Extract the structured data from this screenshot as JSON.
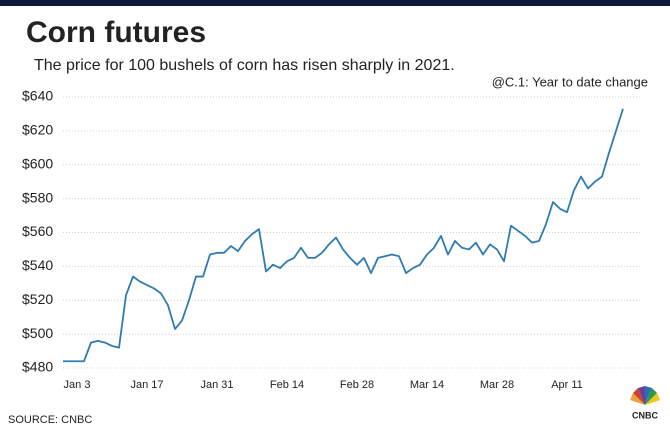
{
  "chart_data": {
    "type": "line",
    "title": "Corn futures",
    "subtitle": "The price for 100 bushels of corn has risen sharply in 2021.",
    "annotation": "@C.1: Year to date change",
    "source": "SOURCE: CNBC",
    "logo": "CNBC",
    "categories": [
      null,
      null,
      "Jan 3",
      null,
      null,
      null,
      null,
      null,
      null,
      null,
      null,
      null,
      "Jan 17",
      null,
      null,
      null,
      null,
      null,
      null,
      null,
      null,
      null,
      "Jan 31",
      null,
      null,
      null,
      null,
      null,
      null,
      null,
      null,
      null,
      "Feb 14",
      null,
      null,
      null,
      null,
      null,
      null,
      null,
      null,
      null,
      "Feb 28",
      null,
      null,
      null,
      null,
      null,
      null,
      null,
      null,
      null,
      "Mar 14",
      null,
      null,
      null,
      null,
      null,
      null,
      null,
      null,
      null,
      "Mar 28",
      null,
      null,
      null,
      null,
      null,
      null,
      null,
      null,
      null,
      "Apr 11",
      null,
      null,
      null,
      null,
      null,
      null,
      null,
      null
    ],
    "series": [
      {
        "name": "@C.1",
        "color": "#2f7bb0",
        "values": [
          484,
          484,
          484,
          484,
          495,
          496,
          495,
          493,
          492,
          523,
          534,
          531,
          529,
          527,
          524,
          517,
          503,
          508,
          520,
          534,
          534,
          547,
          548,
          548,
          552,
          549,
          555,
          559,
          562,
          537,
          541,
          539,
          543,
          545,
          551,
          545,
          545,
          548,
          553,
          557,
          550,
          545,
          541,
          545,
          536,
          545,
          546,
          547,
          546,
          536,
          539,
          541,
          547,
          551,
          558,
          547,
          555,
          551,
          550,
          554,
          547,
          553,
          550,
          543,
          564,
          561,
          558,
          554,
          555,
          565,
          578,
          574,
          572,
          585,
          593,
          586,
          590,
          593,
          607,
          620,
          633
        ]
      }
    ],
    "ylim": [
      480,
      640
    ],
    "yticks": [
      {
        "value": 480,
        "label": "$480"
      },
      {
        "value": 500,
        "label": "$500"
      },
      {
        "value": 520,
        "label": "$520"
      },
      {
        "value": 540,
        "label": "$540"
      },
      {
        "value": 560,
        "label": "$560"
      },
      {
        "value": 580,
        "label": "$580"
      },
      {
        "value": 600,
        "label": "$600"
      },
      {
        "value": 620,
        "label": "$620"
      },
      {
        "value": 640,
        "label": "$640"
      }
    ],
    "grid": true
  }
}
